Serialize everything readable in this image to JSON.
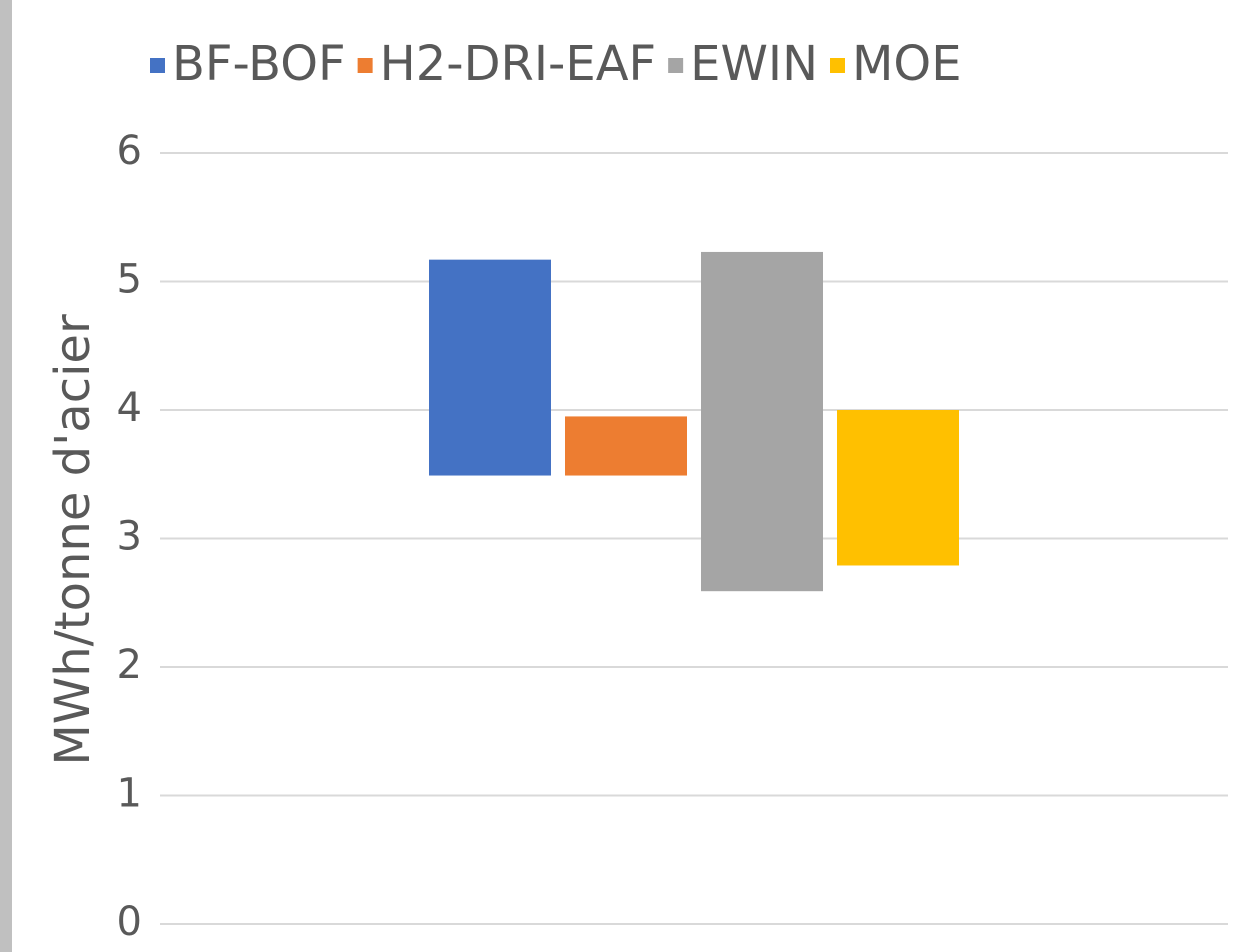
{
  "chart_data": {
    "type": "floating-bar",
    "y_label": "MWh/tonne d'acier",
    "categories": [
      null
    ],
    "series": [
      {
        "name": "BF-BOF",
        "color": "#4472c4",
        "values": [
          [
            3.49,
            5.17
          ]
        ]
      },
      {
        "name": "H2-DRI-EAF",
        "color": "#ed7d31",
        "values": [
          [
            3.49,
            3.95
          ]
        ]
      },
      {
        "name": "EWIN",
        "color": "#a5a5a5",
        "values": [
          [
            2.59,
            5.23
          ]
        ]
      },
      {
        "name": "MOE",
        "color": "#ffc000",
        "values": [
          [
            2.79,
            4.0
          ]
        ]
      }
    ],
    "ylim": [
      0,
      6
    ],
    "yticks": [
      0,
      1,
      2,
      3,
      4,
      5,
      6
    ],
    "grid": true,
    "legend": "top"
  }
}
